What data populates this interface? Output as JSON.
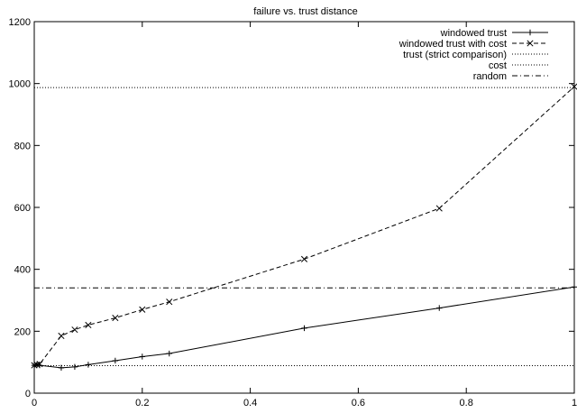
{
  "chart_data": {
    "type": "line",
    "title": "failure vs. trust distance",
    "xlabel": "",
    "ylabel": "",
    "xlim": [
      0,
      1
    ],
    "ylim": [
      0,
      1200
    ],
    "x_ticks": [
      "0",
      "0.2",
      "0.4",
      "0.6",
      "0.8",
      "1"
    ],
    "y_ticks": [
      "0",
      "200",
      "400",
      "600",
      "800",
      "1000",
      "1200"
    ],
    "x_tick_values": [
      0,
      0.2,
      0.4,
      0.6,
      0.8,
      1
    ],
    "y_tick_values": [
      0,
      200,
      400,
      600,
      800,
      1000,
      1200
    ],
    "grid": false,
    "legend_position": "top-right",
    "series": [
      {
        "name": "windowed trust",
        "style": "solid",
        "marker": "plus",
        "x": [
          0,
          0.005,
          0.01,
          0.05,
          0.075,
          0.1,
          0.15,
          0.2,
          0.25,
          0.5,
          0.75,
          1.0
        ],
        "y": [
          90,
          91,
          90,
          82,
          85,
          92,
          105,
          118,
          128,
          210,
          275,
          343
        ]
      },
      {
        "name": "windowed trust with cost",
        "style": "dashed",
        "marker": "x",
        "x": [
          0,
          0.005,
          0.01,
          0.05,
          0.075,
          0.1,
          0.15,
          0.2,
          0.25,
          0.5,
          0.75,
          1.0
        ],
        "y": [
          90,
          92,
          94,
          185,
          205,
          220,
          243,
          270,
          295,
          433,
          597,
          990
        ]
      },
      {
        "name": "trust (strict comparison)",
        "style": "dotted",
        "marker": "none",
        "x": [
          0,
          1
        ],
        "y": [
          89,
          89
        ]
      },
      {
        "name": "cost",
        "style": "dotted",
        "marker": "none",
        "x": [
          0,
          1
        ],
        "y": [
          987,
          987
        ]
      },
      {
        "name": "random",
        "style": "dashdot",
        "marker": "none",
        "x": [
          0,
          1
        ],
        "y": [
          340,
          340
        ]
      }
    ]
  }
}
